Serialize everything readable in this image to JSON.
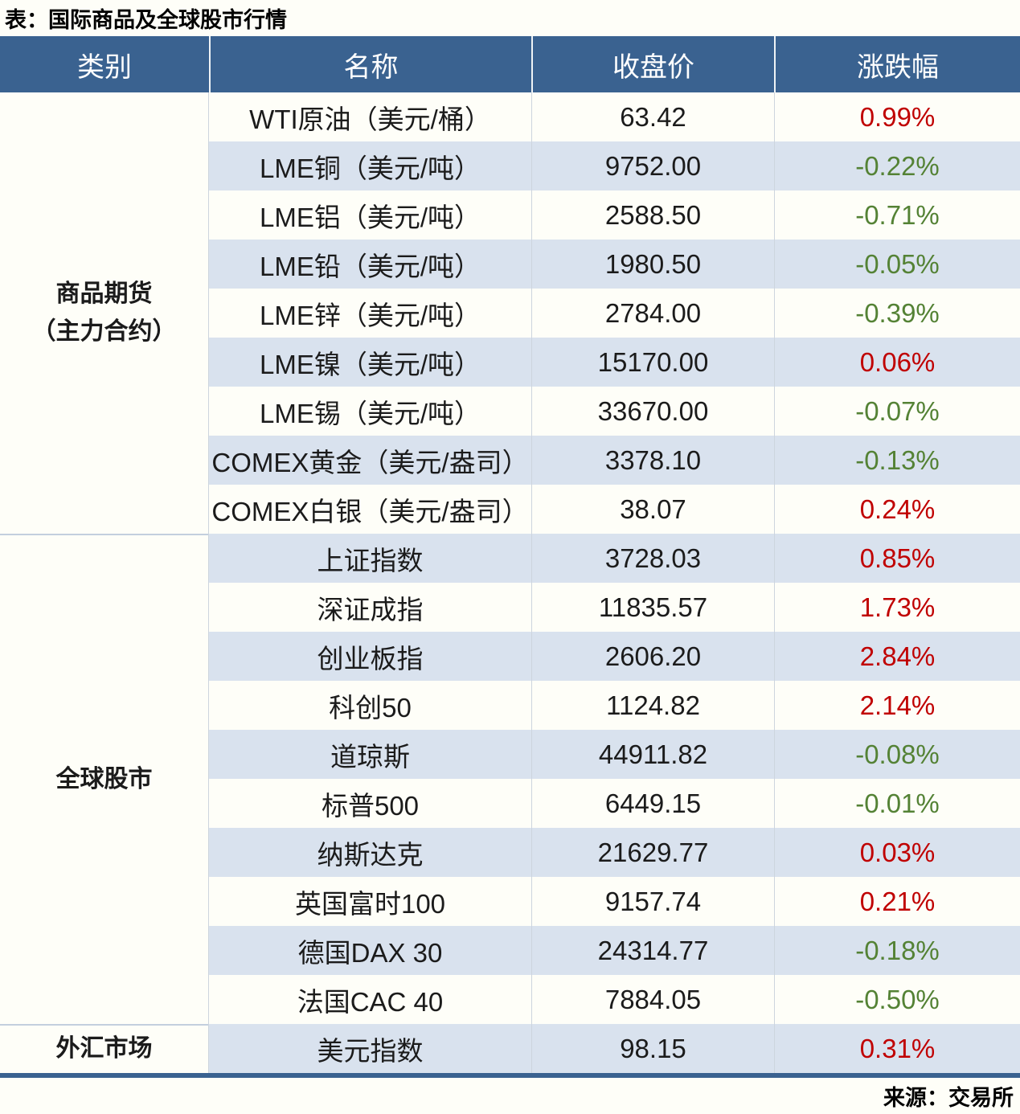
{
  "title": "表：国际商品及全球股市行情",
  "source": "来源：交易所",
  "colors": {
    "header_bg": "#3A6290",
    "stripe": "#D9E2EE",
    "row_white": "#FEFEF8",
    "up": "#C00000",
    "down": "#548235"
  },
  "chart_data": {
    "type": "table",
    "title": "表：国际商品及全球股市行情",
    "columns": [
      "类别",
      "名称",
      "收盘价",
      "涨跌幅"
    ],
    "category_groups": [
      {
        "label_lines": [
          "商品期货",
          "（主力合约）"
        ],
        "row_span": 9
      },
      {
        "label_lines": [
          "全球股市"
        ],
        "row_span": 10
      },
      {
        "label_lines": [
          "外汇市场"
        ],
        "row_span": 1
      }
    ],
    "rows": [
      {
        "name": "WTI原油（美元/桶）",
        "close": "63.42",
        "change": "0.99%"
      },
      {
        "name": "LME铜（美元/吨）",
        "close": "9752.00",
        "change": "-0.22%"
      },
      {
        "name": "LME铝（美元/吨）",
        "close": "2588.50",
        "change": "-0.71%"
      },
      {
        "name": "LME铅（美元/吨）",
        "close": "1980.50",
        "change": "-0.05%"
      },
      {
        "name": "LME锌（美元/吨）",
        "close": "2784.00",
        "change": "-0.39%"
      },
      {
        "name": "LME镍（美元/吨）",
        "close": "15170.00",
        "change": "0.06%"
      },
      {
        "name": "LME锡（美元/吨）",
        "close": "33670.00",
        "change": "-0.07%"
      },
      {
        "name": "COMEX黄金（美元/盎司）",
        "close": "3378.10",
        "change": "-0.13%"
      },
      {
        "name": "COMEX白银（美元/盎司）",
        "close": "38.07",
        "change": "0.24%"
      },
      {
        "name": "上证指数",
        "close": "3728.03",
        "change": "0.85%"
      },
      {
        "name": "深证成指",
        "close": "11835.57",
        "change": "1.73%"
      },
      {
        "name": "创业板指",
        "close": "2606.20",
        "change": "2.84%"
      },
      {
        "name": "科创50",
        "close": "1124.82",
        "change": "2.14%"
      },
      {
        "name": "道琼斯",
        "close": "44911.82",
        "change": "-0.08%"
      },
      {
        "name": "标普500",
        "close": "6449.15",
        "change": "-0.01%"
      },
      {
        "name": "纳斯达克",
        "close": "21629.77",
        "change": "0.03%"
      },
      {
        "name": "英国富时100",
        "close": "9157.74",
        "change": "0.21%"
      },
      {
        "name": "德国DAX 30",
        "close": "24314.77",
        "change": "-0.18%"
      },
      {
        "name": "法国CAC 40",
        "close": "7884.05",
        "change": "-0.50%"
      },
      {
        "name": "美元指数",
        "close": "98.15",
        "change": "0.31%"
      }
    ]
  }
}
